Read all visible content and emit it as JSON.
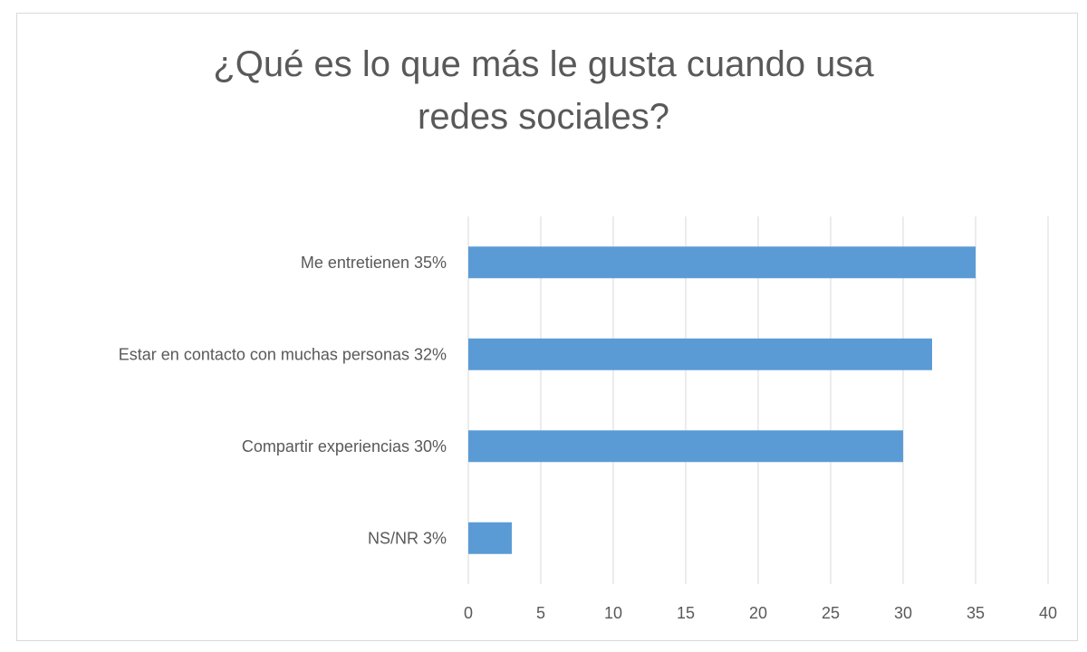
{
  "chart_data": {
    "type": "bar",
    "orientation": "horizontal",
    "title": "¿Qué es lo que más le gusta cuando usa redes sociales?",
    "title_lines": [
      "¿Qué es lo que más le gusta cuando usa",
      "redes sociales?"
    ],
    "categories": [
      "Me entretienen  35%",
      "Estar en contacto con muchas personas  32%",
      "Compartir experiencias  30%",
      "NS/NR  3%"
    ],
    "values": [
      35,
      32,
      30,
      3
    ],
    "xlim": [
      0,
      40
    ],
    "xticks": [
      0,
      5,
      10,
      15,
      20,
      25,
      30,
      35,
      40
    ],
    "grid": true,
    "legend": "none",
    "bar_color": "#5b9bd5",
    "xlabel": "",
    "ylabel": ""
  }
}
